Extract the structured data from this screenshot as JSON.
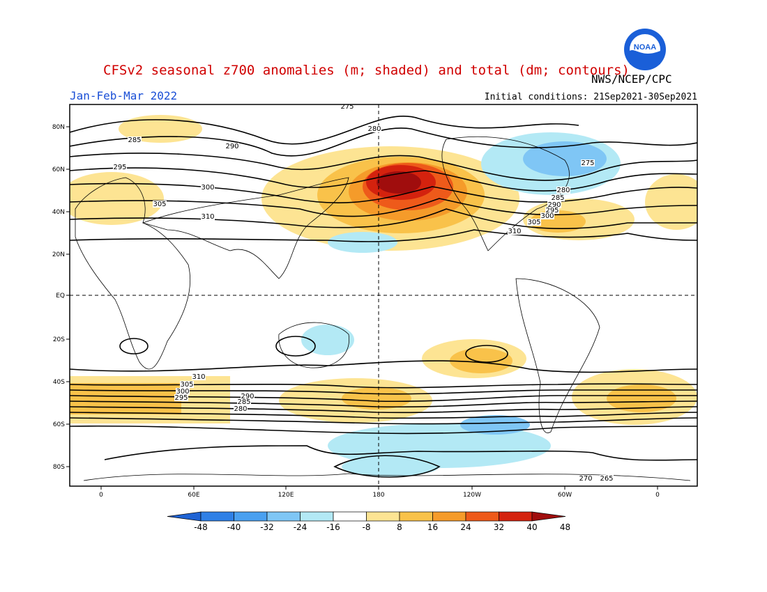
{
  "title": "CFSv2 seasonal z700 anomalies (m; shaded) and total (dm; contours)",
  "agency": "NWS/NCEP/CPC",
  "period": "Jan-Feb-Mar 2022",
  "initial_conditions": "Initial conditions: 21Sep2021-30Sep2021",
  "logo_text": "NOAA",
  "colors": {
    "title": "#d00000",
    "period": "#1a4fd6",
    "scale": [
      "#1f63d4",
      "#2f80e6",
      "#4aa0f0",
      "#7fc6f5",
      "#b3e9f5",
      "#ffffff",
      "#fde493",
      "#f9c24a",
      "#f59b2a",
      "#ee5a1a",
      "#d4220e",
      "#a00d0d"
    ]
  },
  "map": {
    "lat_labels": [
      "80N",
      "60N",
      "40N",
      "20N",
      "EQ",
      "20S",
      "40S",
      "60S",
      "80S"
    ],
    "lon_labels": [
      "0",
      "60E",
      "120E",
      "180",
      "120W",
      "60W",
      "0"
    ],
    "contour_labels": [
      "275",
      "280",
      "285",
      "290",
      "295",
      "300",
      "305",
      "310",
      "275",
      "280",
      "285",
      "290",
      "295",
      "300",
      "305",
      "310",
      "310",
      "305",
      "300",
      "295",
      "290",
      "285",
      "280",
      "270",
      "265"
    ]
  },
  "colorbar": {
    "ticks": [
      "-48",
      "-40",
      "-32",
      "-24",
      "-16",
      "-8",
      "8",
      "16",
      "24",
      "32",
      "40",
      "48"
    ]
  }
}
